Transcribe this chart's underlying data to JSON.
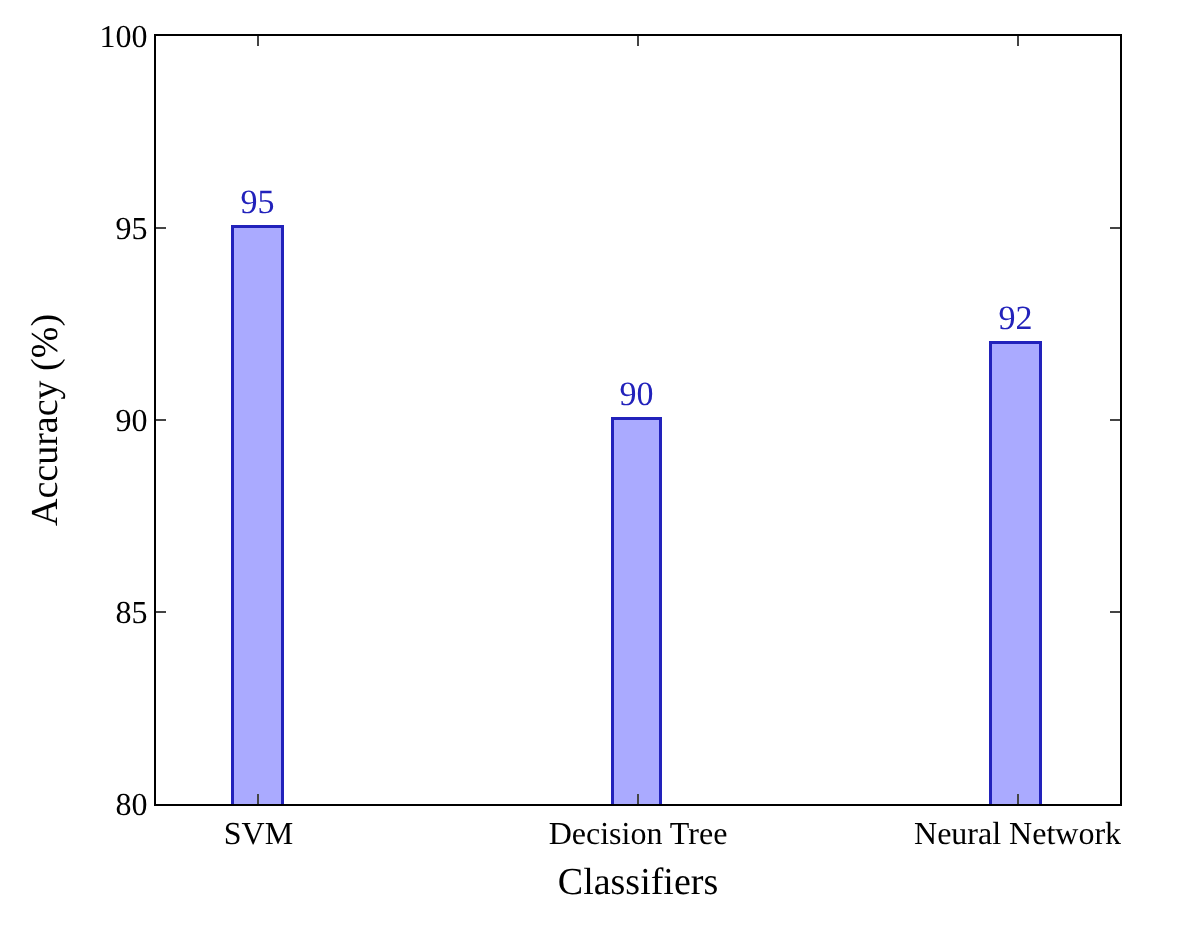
{
  "chart_data": {
    "type": "bar",
    "categories": [
      "SVM",
      "Decision Tree",
      "Neural Network"
    ],
    "values": [
      95,
      90,
      92
    ],
    "color": "#aaaaff",
    "xlabel": "Classifiers",
    "ylabel": "Accuracy (%)",
    "ylim": [
      80,
      100
    ],
    "yticks": [
      80,
      85,
      90,
      95,
      100
    ],
    "data_labels": true
  }
}
